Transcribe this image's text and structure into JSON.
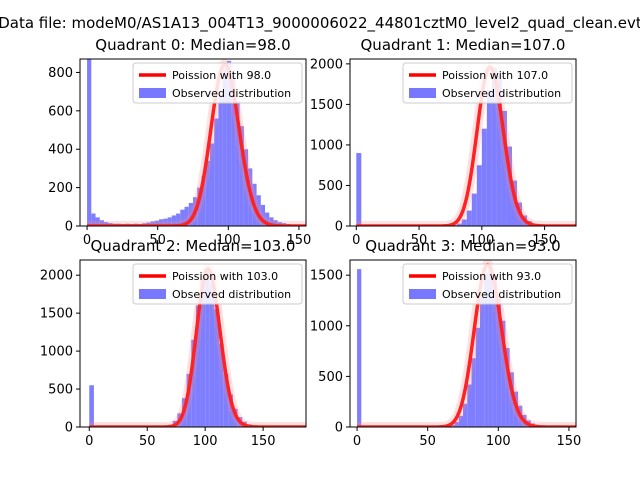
{
  "figure": {
    "suptitle": "Data file: modeM0/AS1A13_004T13_9000006022_44801cztM0_level2_quad_clean.evt"
  },
  "colors": {
    "hist_fill": "#7777ff",
    "poisson_line": "#ff0000",
    "axis": "#000000"
  },
  "chart_data": [
    {
      "type": "bar",
      "title": "Quadrant 0: Median=98.0",
      "xlim": [
        -5,
        155
      ],
      "ylim": [
        0,
        870
      ],
      "xticks": [
        0,
        50,
        100,
        150
      ],
      "yticks": [
        0,
        200,
        400,
        600,
        800
      ],
      "median": 98.0,
      "poisson_peak": 840,
      "legend": {
        "position": "top-right",
        "line_label": "Poission with 98.0",
        "bar_label": "Observed distribution"
      },
      "bins": {
        "x": [
          0,
          3,
          6,
          9,
          12,
          15,
          18,
          21,
          24,
          27,
          30,
          33,
          36,
          39,
          42,
          45,
          48,
          51,
          54,
          57,
          60,
          63,
          66,
          69,
          72,
          75,
          78,
          81,
          84,
          87,
          90,
          93,
          96,
          99,
          102,
          105,
          108,
          111,
          114,
          117,
          120,
          123,
          126,
          129,
          132,
          135,
          138,
          141,
          144,
          147
        ],
        "width": 3,
        "counts": [
          870,
          65,
          45,
          30,
          20,
          15,
          12,
          12,
          10,
          12,
          10,
          12,
          10,
          14,
          18,
          24,
          28,
          35,
          38,
          45,
          55,
          65,
          85,
          100,
          120,
          150,
          200,
          260,
          340,
          430,
          560,
          690,
          820,
          860,
          780,
          650,
          520,
          400,
          300,
          220,
          160,
          110,
          70,
          45,
          30,
          20,
          15,
          10,
          6,
          4
        ]
      }
    },
    {
      "type": "bar",
      "title": "Quadrant 1: Median=107.0",
      "xlim": [
        -5,
        175
      ],
      "ylim": [
        0,
        2060
      ],
      "xticks": [
        0,
        50,
        100,
        150
      ],
      "yticks": [
        0,
        500,
        1000,
        1500,
        2000
      ],
      "median": 107.0,
      "poisson_peak": 1960,
      "legend": {
        "position": "top-right",
        "line_label": "Poission with 107.0",
        "bar_label": "Observed distribution"
      },
      "bins": {
        "x": [
          0,
          4,
          8,
          12,
          16,
          20,
          24,
          28,
          32,
          36,
          40,
          44,
          48,
          52,
          56,
          60,
          64,
          68,
          72,
          76,
          80,
          84,
          88,
          92,
          96,
          100,
          104,
          108,
          112,
          116,
          120,
          124,
          128,
          132,
          136,
          140,
          144,
          148,
          152,
          156,
          160,
          164,
          168
        ],
        "width": 4,
        "counts": [
          900,
          0,
          0,
          0,
          0,
          0,
          0,
          0,
          0,
          0,
          0,
          0,
          0,
          0,
          0,
          0,
          0,
          0,
          2,
          10,
          30,
          80,
          190,
          400,
          750,
          1200,
          1680,
          1950,
          1850,
          1420,
          980,
          560,
          290,
          130,
          60,
          25,
          10,
          4,
          2,
          1,
          1,
          0,
          0
        ]
      }
    },
    {
      "type": "bar",
      "title": "Quadrant 2: Median=103.0",
      "xlim": [
        -8,
        187
      ],
      "ylim": [
        0,
        2200
      ],
      "xticks": [
        0,
        50,
        100,
        150
      ],
      "yticks": [
        0,
        500,
        1000,
        1500,
        2000
      ],
      "median": 103.0,
      "poisson_peak": 2080,
      "legend": {
        "position": "top-right",
        "line_label": "Poission with 103.0",
        "bar_label": "Observed distribution"
      },
      "bins": {
        "x": [
          0,
          4,
          8,
          12,
          16,
          20,
          24,
          28,
          32,
          36,
          40,
          44,
          48,
          52,
          56,
          60,
          64,
          68,
          72,
          76,
          80,
          84,
          88,
          92,
          96,
          100,
          104,
          108,
          112,
          116,
          120,
          124,
          128,
          132,
          136,
          140,
          144,
          148,
          152,
          156,
          160,
          164,
          168,
          172,
          176,
          180
        ],
        "width": 4,
        "counts": [
          550,
          0,
          0,
          0,
          0,
          0,
          0,
          0,
          0,
          0,
          0,
          0,
          0,
          0,
          2,
          4,
          10,
          30,
          80,
          180,
          380,
          700,
          1150,
          1600,
          1950,
          2100,
          1900,
          1550,
          1100,
          700,
          430,
          240,
          130,
          70,
          35,
          18,
          8,
          4,
          2,
          1,
          1,
          0,
          0,
          0,
          0,
          0
        ]
      }
    },
    {
      "type": "bar",
      "title": "Quadrant 3: Median=93.0",
      "xlim": [
        -5,
        155
      ],
      "ylim": [
        0,
        1650
      ],
      "xticks": [
        0,
        50,
        100,
        150
      ],
      "yticks": [
        0,
        500,
        1000,
        1500
      ],
      "median": 93.0,
      "poisson_peak": 1600,
      "legend": {
        "position": "top-right",
        "line_label": "Poission with 93.0",
        "bar_label": "Observed distribution"
      },
      "bins": {
        "x": [
          0,
          3,
          6,
          9,
          12,
          15,
          18,
          21,
          24,
          27,
          30,
          33,
          36,
          39,
          42,
          45,
          48,
          51,
          54,
          57,
          60,
          63,
          66,
          69,
          72,
          75,
          78,
          81,
          84,
          87,
          90,
          93,
          96,
          99,
          102,
          105,
          108,
          111,
          114,
          117,
          120,
          123,
          126,
          129,
          132,
          135,
          138,
          141,
          144,
          147
        ],
        "width": 3,
        "counts": [
          1560,
          0,
          0,
          0,
          0,
          0,
          0,
          0,
          0,
          0,
          0,
          0,
          0,
          0,
          0,
          0,
          0,
          0,
          0,
          1,
          3,
          8,
          20,
          50,
          110,
          230,
          420,
          680,
          980,
          1280,
          1520,
          1600,
          1500,
          1300,
          1050,
          780,
          540,
          350,
          210,
          120,
          65,
          35,
          18,
          9,
          4,
          2,
          1,
          0,
          0,
          0
        ]
      }
    }
  ]
}
